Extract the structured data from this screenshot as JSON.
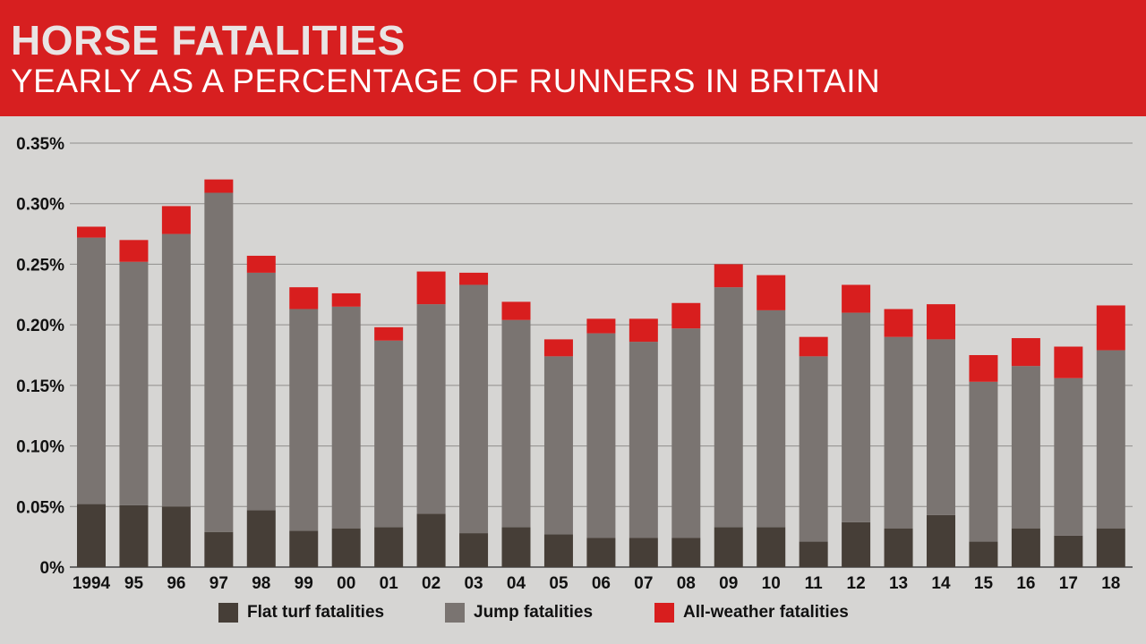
{
  "chart_data": {
    "type": "bar",
    "stacked": true,
    "title": "HORSE FATALITIES",
    "subtitle": "YEARLY AS A PERCENTAGE OF RUNNERS IN BRITAIN",
    "xlabel": "",
    "ylabel": "",
    "ylim": [
      0,
      0.35
    ],
    "yticks": [
      "0%",
      "0.05%",
      "0.10%",
      "0.15%",
      "0.20%",
      "0.25%",
      "0.30%",
      "0.35%"
    ],
    "grid": true,
    "legend_position": "bottom",
    "categories": [
      "1994",
      "95",
      "96",
      "97",
      "98",
      "99",
      "00",
      "01",
      "02",
      "03",
      "04",
      "05",
      "06",
      "07",
      "08",
      "09",
      "10",
      "11",
      "12",
      "13",
      "14",
      "15",
      "16",
      "17",
      "18"
    ],
    "series": [
      {
        "name": "Flat turf fatalities",
        "color": "#463e37",
        "values": [
          0.052,
          0.051,
          0.05,
          0.029,
          0.047,
          0.03,
          0.032,
          0.033,
          0.044,
          0.028,
          0.033,
          0.027,
          0.024,
          0.024,
          0.024,
          0.033,
          0.033,
          0.021,
          0.037,
          0.032,
          0.043,
          0.021,
          0.032,
          0.026,
          0.032
        ]
      },
      {
        "name": "Jump fatalities",
        "color": "#7a7471",
        "values": [
          0.22,
          0.201,
          0.225,
          0.28,
          0.196,
          0.183,
          0.183,
          0.154,
          0.173,
          0.205,
          0.171,
          0.147,
          0.169,
          0.162,
          0.173,
          0.198,
          0.179,
          0.153,
          0.173,
          0.158,
          0.145,
          0.132,
          0.134,
          0.13,
          0.147
        ]
      },
      {
        "name": "All-weather fatalities",
        "color": "#d81e1e",
        "values": [
          0.009,
          0.018,
          0.023,
          0.011,
          0.014,
          0.018,
          0.011,
          0.011,
          0.027,
          0.01,
          0.015,
          0.014,
          0.012,
          0.019,
          0.021,
          0.019,
          0.029,
          0.016,
          0.023,
          0.023,
          0.029,
          0.022,
          0.023,
          0.026,
          0.037
        ]
      }
    ]
  },
  "colors": {
    "header": "#d71f20",
    "background": "#d6d5d3",
    "grid": "#8f8d8b"
  }
}
